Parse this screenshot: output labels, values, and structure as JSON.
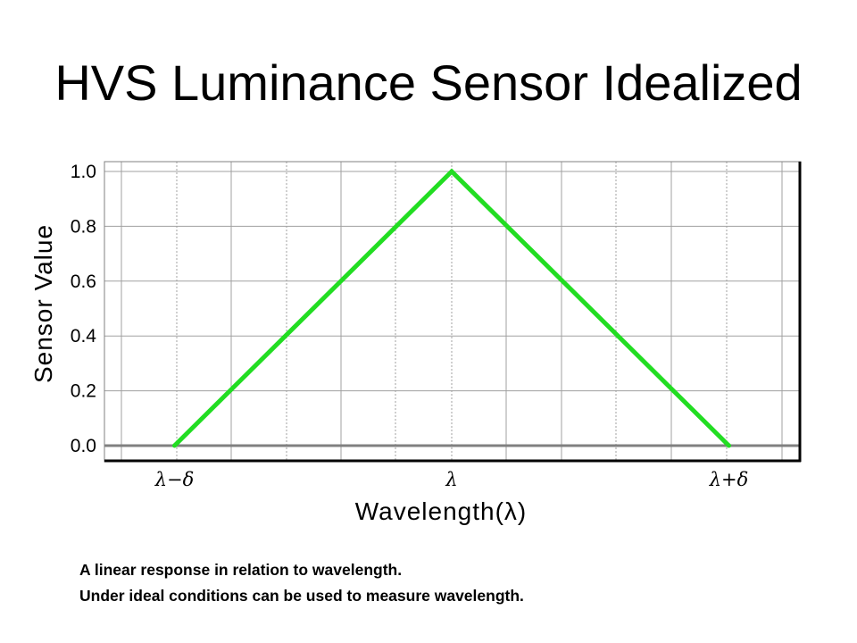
{
  "page": {
    "title": "HVS Luminance Sensor Idealized"
  },
  "caption": {
    "line1": "A linear response in relation to wavelength.",
    "line2": "Under ideal conditions can be used to measure wavelength."
  },
  "colors": {
    "line": "#22dd22",
    "grid": "#a0a0a0",
    "zero_line": "#808080"
  },
  "chart_data": {
    "type": "line",
    "title": "",
    "xlabel": "Wavelength(λ)",
    "ylabel": "Sensor Value",
    "x_tick_labels": [
      "λ−δ",
      "λ",
      "λ+δ"
    ],
    "y_tick_labels": [
      "0.0",
      "0.2",
      "0.4",
      "0.6",
      "0.8",
      "1.0"
    ],
    "xlim": [
      -1.3,
      1.3
    ],
    "ylim": [
      0,
      1.0
    ],
    "grid": true,
    "series": [
      {
        "x": [
          -1,
          0,
          1
        ],
        "y": [
          0.0,
          1.0,
          0.0
        ]
      }
    ]
  }
}
